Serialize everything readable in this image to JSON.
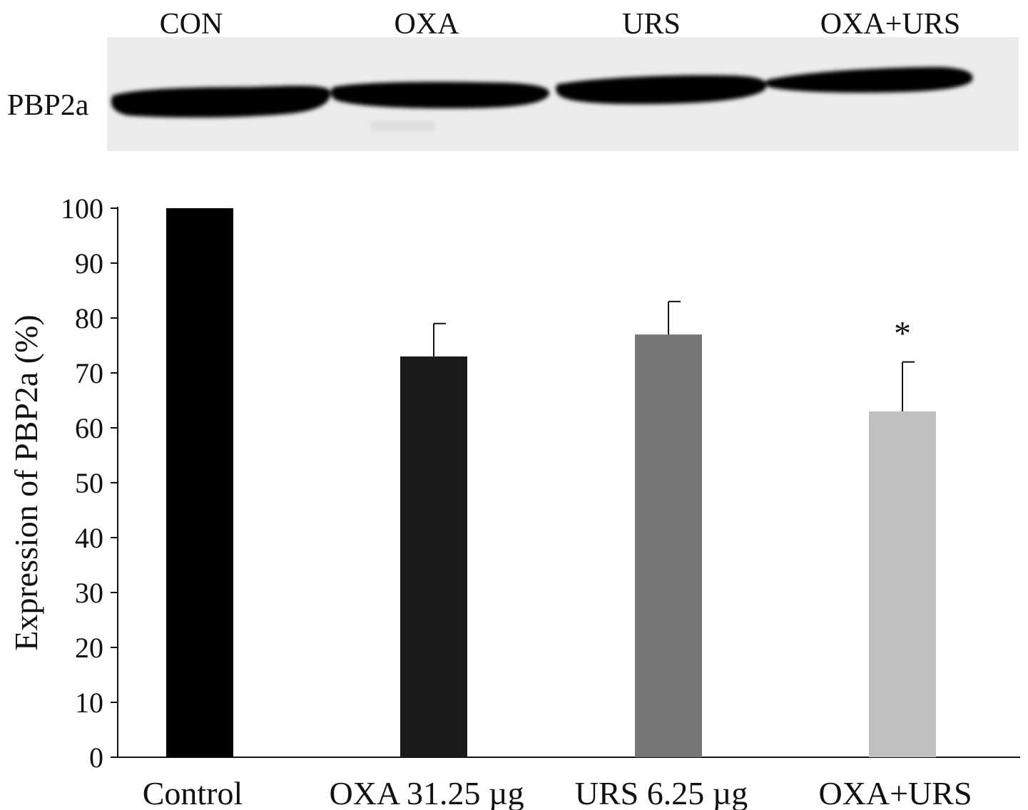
{
  "blot": {
    "lanes": [
      "CON",
      "OXA",
      "URS",
      "OXA+URS"
    ],
    "band_label": "PBP2a"
  },
  "chart_data": {
    "type": "bar",
    "categories": [
      "Control",
      "OXA 31.25 µg",
      "URS 6.25 µg",
      "OXA+URS"
    ],
    "values": [
      100,
      73,
      77,
      63
    ],
    "errors": [
      0,
      6,
      6,
      9
    ],
    "bar_colors": [
      "#000000",
      "#1a1a1a",
      "#767676",
      "#c0c0c0"
    ],
    "significance": [
      "",
      "",
      "",
      "*"
    ],
    "ylabel": "Expression of PBP2a (%)",
    "ylim": [
      0,
      100
    ],
    "yticks": [
      0,
      10,
      20,
      30,
      40,
      50,
      60,
      70,
      80,
      90,
      100
    ],
    "grid": false
  }
}
